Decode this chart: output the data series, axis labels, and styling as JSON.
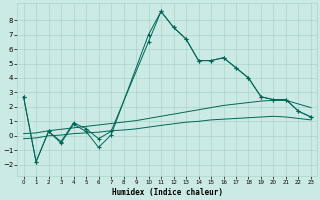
{
  "xlabel": "Humidex (Indice chaleur)",
  "bg_color": "#cceae5",
  "grid_color": "#aad4cc",
  "line_color": "#006655",
  "xlim": [
    -0.5,
    23.5
  ],
  "ylim": [
    -2.8,
    9.2
  ],
  "yticks": [
    -2,
    -1,
    0,
    1,
    2,
    3,
    4,
    5,
    6,
    7,
    8
  ],
  "xticks": [
    0,
    1,
    2,
    3,
    4,
    5,
    6,
    7,
    8,
    9,
    10,
    11,
    12,
    13,
    14,
    15,
    16,
    17,
    18,
    19,
    20,
    21,
    22,
    23
  ],
  "line1_x": [
    0,
    1,
    2,
    3,
    4,
    5,
    6,
    7,
    10,
    11,
    12,
    13,
    14,
    15,
    16,
    17,
    18,
    19,
    20,
    21,
    22,
    23
  ],
  "line1_y": [
    2.7,
    -1.8,
    0.3,
    -0.5,
    0.8,
    0.3,
    -0.8,
    0.05,
    7.0,
    8.6,
    7.5,
    6.7,
    5.2,
    5.2,
    5.4,
    4.7,
    4.0,
    2.7,
    2.5,
    2.5,
    1.7,
    1.3
  ],
  "line2_x": [
    0,
    1,
    2,
    3,
    4,
    5,
    6,
    7,
    10,
    11,
    12,
    13,
    14,
    15,
    16,
    17,
    18,
    19,
    20,
    21,
    22,
    23
  ],
  "line2_y": [
    2.7,
    -1.8,
    0.3,
    -0.4,
    0.9,
    0.5,
    -0.2,
    0.3,
    6.5,
    8.6,
    7.5,
    6.7,
    5.2,
    5.2,
    5.4,
    4.7,
    4.0,
    2.7,
    2.5,
    2.5,
    1.7,
    1.3
  ],
  "line3_x": [
    0,
    1,
    2,
    3,
    4,
    5,
    6,
    7,
    8,
    9,
    10,
    11,
    12,
    13,
    14,
    15,
    16,
    17,
    18,
    19,
    20,
    21,
    22,
    23
  ],
  "line3_y": [
    0.15,
    0.2,
    0.35,
    0.45,
    0.55,
    0.65,
    0.75,
    0.85,
    0.95,
    1.05,
    1.2,
    1.35,
    1.5,
    1.65,
    1.8,
    1.95,
    2.1,
    2.2,
    2.3,
    2.4,
    2.45,
    2.45,
    2.2,
    1.95
  ],
  "line4_x": [
    0,
    1,
    2,
    3,
    4,
    5,
    6,
    7,
    8,
    9,
    10,
    11,
    12,
    13,
    14,
    15,
    16,
    17,
    18,
    19,
    20,
    21,
    22,
    23
  ],
  "line4_y": [
    -0.2,
    -0.15,
    0.0,
    0.05,
    0.15,
    0.2,
    0.25,
    0.35,
    0.4,
    0.48,
    0.6,
    0.72,
    0.83,
    0.94,
    1.0,
    1.1,
    1.15,
    1.2,
    1.25,
    1.3,
    1.35,
    1.3,
    1.2,
    1.1
  ]
}
